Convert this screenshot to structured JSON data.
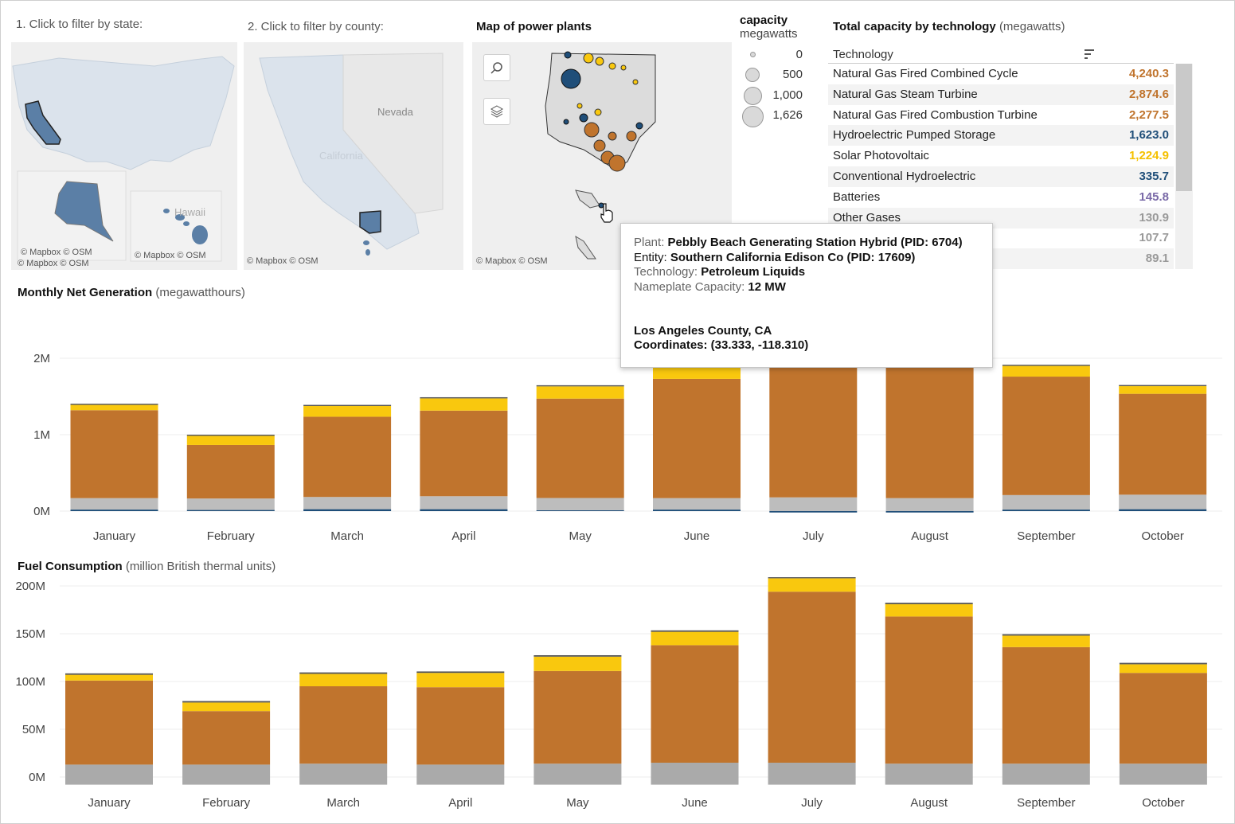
{
  "filters": {
    "state_label": "1. Click to filter by state:",
    "county_label": "2. Click to filter by county:",
    "map_title": "Map of power plants",
    "credits": "© Mapbox  © OSM",
    "nevada": "Nevada",
    "california": "California",
    "hawaii": "Hawaii"
  },
  "legend": {
    "title": "capacity",
    "unit": "megawatts",
    "items": [
      "0",
      "500",
      "1,000",
      "1,626"
    ]
  },
  "capacity_table": {
    "title": "Total capacity by technology",
    "unit": "(megawatts)",
    "header": "Technology",
    "rows": [
      {
        "name": "Natural Gas Fired Combined Cycle",
        "value": "4,240.3",
        "color": "#c0742d"
      },
      {
        "name": "Natural Gas Steam Turbine",
        "value": "2,874.6",
        "color": "#c0742d"
      },
      {
        "name": "Natural Gas Fired Combustion Turbine",
        "value": "2,277.5",
        "color": "#c0742d"
      },
      {
        "name": "Hydroelectric Pumped Storage",
        "value": "1,623.0",
        "color": "#1f4e79"
      },
      {
        "name": "Solar Photovoltaic",
        "value": "1,224.9",
        "color": "#f5c000"
      },
      {
        "name": "Conventional Hydroelectric",
        "value": "335.7",
        "color": "#1f4e79"
      },
      {
        "name": "Batteries",
        "value": "145.8",
        "color": "#7a6aa8"
      },
      {
        "name": "Other Gases",
        "value": "130.9",
        "color": "#999999"
      },
      {
        "name": "",
        "value": "107.7",
        "color": "#999999"
      },
      {
        "name": "",
        "value": "89.1",
        "color": "#999999"
      }
    ]
  },
  "tooltip": {
    "plant_key": "Plant:",
    "plant_val": "Pebbly Beach Generating Station Hybrid (PID: 6704)",
    "entity_key": "Entity:",
    "entity_val": "Southern California Edison Co (PID: 17609)",
    "tech_key": "Technology:",
    "tech_val": "Petroleum Liquids",
    "cap_key": "Nameplate Capacity:",
    "cap_val": "12 MW",
    "county": "Los Angeles County, CA",
    "coords": "Coordinates: (33.333, -118.310)"
  },
  "colors": {
    "gas": "#c0742d",
    "solar": "#f9c80e",
    "other": "#bdbdbd",
    "hydro": "#1f4e79",
    "state_fill": "#dbe3ec",
    "state_selected": "#5b7fa6"
  },
  "chart_data": [
    {
      "type": "bar",
      "title": "Monthly Net Generation",
      "unit": "(megawatthours)",
      "categories": [
        "January",
        "February",
        "March",
        "April",
        "May",
        "June",
        "July",
        "August",
        "September",
        "October"
      ],
      "ylim": [
        0,
        2400000
      ],
      "yticks": [
        {
          "v": 0,
          "label": "0M"
        },
        {
          "v": 1000000,
          "label": "1M"
        },
        {
          "v": 2000000,
          "label": "2M"
        }
      ],
      "series": [
        {
          "values": [
            20000,
            15000,
            25000,
            25000,
            12000,
            20000,
            -18000,
            -18000,
            20000,
            25000
          ],
          "color": "#1f4e79"
        },
        {
          "values": [
            150000,
            150000,
            160000,
            170000,
            160000,
            150000,
            180000,
            170000,
            190000,
            190000
          ],
          "color": "#bdbdbd"
        },
        {
          "values": [
            1150000,
            700000,
            1050000,
            1120000,
            1300000,
            1560000,
            1800000,
            1800000,
            1550000,
            1320000
          ],
          "color": "#c0742d"
        },
        {
          "values": [
            70000,
            120000,
            140000,
            160000,
            160000,
            160000,
            170000,
            160000,
            140000,
            100000
          ],
          "color": "#f9c80e"
        },
        {
          "values": [
            15000,
            15000,
            15000,
            15000,
            15000,
            15000,
            15000,
            15000,
            15000,
            15000
          ],
          "color": "#555555"
        }
      ]
    },
    {
      "type": "bar",
      "title": "Fuel Consumption",
      "unit": "(million British thermal units)",
      "categories": [
        "January",
        "February",
        "March",
        "April",
        "May",
        "June",
        "July",
        "August",
        "September",
        "October"
      ],
      "ylim": [
        -9000000,
        220000000
      ],
      "yticks": [
        {
          "v": 0,
          "label": "0M"
        },
        {
          "v": 50000000,
          "label": "50M"
        },
        {
          "v": 100000000,
          "label": "100M"
        },
        {
          "v": 150000000,
          "label": "150M"
        },
        {
          "v": 200000000,
          "label": "200M"
        }
      ],
      "series": [
        {
          "values": [
            -8000000,
            -8000000,
            -8000000,
            -8000000,
            -8000000,
            -8000000,
            -8000000,
            -8000000,
            -8000000,
            -8000000
          ],
          "color": "#aaaaaa"
        },
        {
          "values": [
            13000000,
            13000000,
            14000000,
            13000000,
            14000000,
            15000000,
            15000000,
            14000000,
            14000000,
            14000000
          ],
          "color": "#aaaaaa"
        },
        {
          "values": [
            88000000,
            56000000,
            81000000,
            81000000,
            97000000,
            123000000,
            179000000,
            154000000,
            122000000,
            95000000
          ],
          "color": "#c0742d"
        },
        {
          "values": [
            6000000,
            9000000,
            13000000,
            15000000,
            15000000,
            14000000,
            14000000,
            13000000,
            12000000,
            9000000
          ],
          "color": "#f9c80e"
        },
        {
          "values": [
            1500000,
            1500000,
            1500000,
            1500000,
            1500000,
            1500000,
            1500000,
            1500000,
            1500000,
            1500000
          ],
          "color": "#555555"
        }
      ]
    }
  ]
}
